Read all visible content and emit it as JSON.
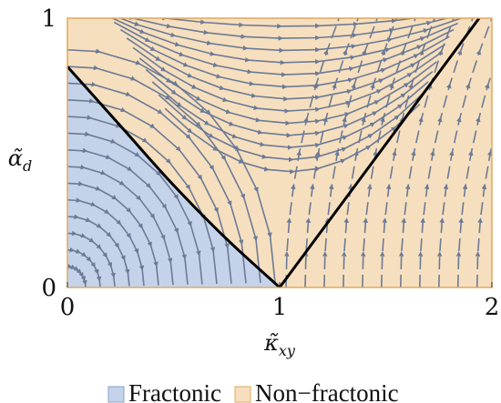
{
  "chart_data": {
    "type": "phase_diagram_streamplot",
    "xlabel": "κ̃xy",
    "ylabel": "α̃d",
    "xlim": [
      0,
      2
    ],
    "ylim": [
      0,
      1
    ],
    "x_ticks": [
      "0",
      "1",
      "2"
    ],
    "y_ticks": [
      "0",
      "1"
    ],
    "legend_position": "bottom",
    "regions": [
      {
        "name": "Fractonic",
        "color": "#c5d3ea",
        "edge": "#8aa0c8"
      },
      {
        "name": "Non−fractonic",
        "color": "#f6dfbe",
        "edge": "#e1a95e"
      }
    ],
    "boundary_left": [
      [
        0,
        0.82
      ],
      [
        0.25,
        0.6
      ],
      [
        0.5,
        0.38
      ],
      [
        0.75,
        0.18
      ],
      [
        1.0,
        0.0
      ]
    ],
    "boundary_right": [
      [
        1.0,
        0.0
      ],
      [
        1.94,
        1.0
      ]
    ],
    "stream_color": "#6b7a96",
    "boundary_color": "#000000"
  }
}
